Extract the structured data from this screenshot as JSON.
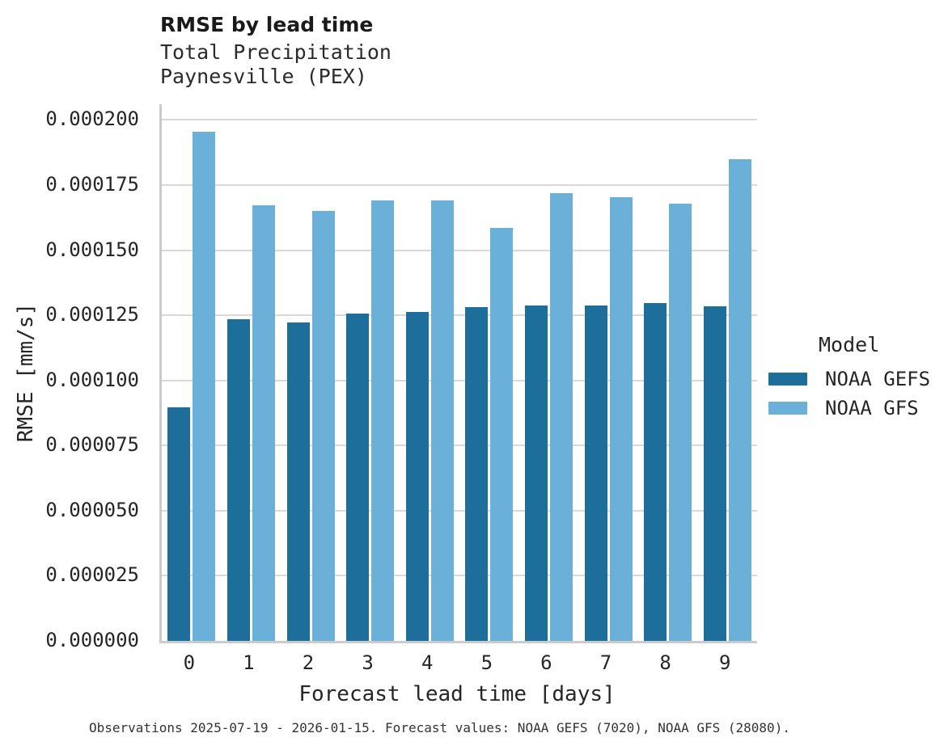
{
  "title": "RMSE by lead time",
  "subtitle_lines": {
    "line1": "Total Precipitation",
    "line2": "Paynesville (PEX)"
  },
  "footer": "Observations 2025-07-19 - 2026-01-15. Forecast values: NOAA GEFS (7020), NOAA GFS (28080).",
  "legend": {
    "title": "Model",
    "items": [
      {
        "label": "NOAA GEFS",
        "color": "#1e6e9c"
      },
      {
        "label": "NOAA GFS",
        "color": "#6bb0d8"
      }
    ]
  },
  "colors": {
    "series_dark": "#1e6e9c",
    "series_light": "#6bb0d8",
    "grid": "#d9d9d9",
    "spine": "#cbcbcb",
    "text": "#262626"
  },
  "chart_data": {
    "type": "bar",
    "title": "RMSE by lead time",
    "subtitle": "Total Precipitation, Paynesville (PEX)",
    "xlabel": "Forecast lead time [days]",
    "ylabel": "RMSE [mm/s]",
    "categories": [
      0,
      1,
      2,
      3,
      4,
      5,
      6,
      7,
      8,
      9
    ],
    "series": [
      {
        "name": "NOAA GEFS",
        "color": "#1e6e9c",
        "values": [
          8.98e-05,
          0.0001234,
          0.0001223,
          0.0001256,
          0.0001263,
          0.0001281,
          0.0001289,
          0.0001287,
          0.0001298,
          0.0001284
        ]
      },
      {
        "name": "NOAA GFS",
        "color": "#6bb0d8",
        "values": [
          0.0001954,
          0.0001671,
          0.000165,
          0.0001691,
          0.000169,
          0.0001584,
          0.0001718,
          0.0001704,
          0.000168,
          0.0001848
        ]
      }
    ],
    "ylim": [
      0,
      0.000206
    ],
    "yticks": [
      0,
      2.5e-05,
      5e-05,
      7.5e-05,
      0.0001,
      0.000125,
      0.00015,
      0.000175,
      0.0002
    ],
    "ytick_decimals": 6,
    "grid": true,
    "legend_title": "Model",
    "legend_position": "right"
  }
}
